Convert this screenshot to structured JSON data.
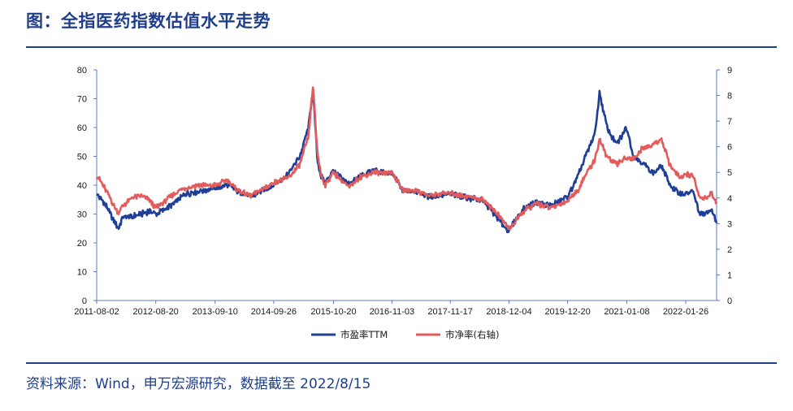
{
  "title": "图：全指医药指数估值水平走势",
  "source": "资料来源：Wind，申万宏源研究，数据截至 2022/8/15",
  "chart_data": {
    "type": "line",
    "title": "",
    "xlabel": "",
    "ylabel": "",
    "y2label": "",
    "ylim": [
      0,
      80
    ],
    "y2lim": [
      0,
      9
    ],
    "yticks": [
      0,
      10,
      20,
      30,
      40,
      50,
      60,
      70,
      80
    ],
    "y2ticks": [
      0,
      1,
      2,
      3,
      4,
      5,
      6,
      7,
      8,
      9
    ],
    "xlim": [
      "2011-08-02",
      "2022-08-15"
    ],
    "x_tick_labels": [
      "2011-08-02",
      "2012-08-20",
      "2013-09-10",
      "2014-09-26",
      "2015-10-20",
      "2016-11-03",
      "2017-11-17",
      "2018-12-04",
      "2019-12-20",
      "2021-01-08",
      "2022-01-26"
    ],
    "legend_position": "bottom",
    "grid": false,
    "series": [
      {
        "name": "市盈率TTM",
        "axis": "left",
        "color": "#1f3e96",
        "x": [
          "2011-08-02",
          "2011-10-01",
          "2011-12-20",
          "2012-01-20",
          "2012-03-15",
          "2012-05-15",
          "2012-07-10",
          "2012-08-20",
          "2012-12-01",
          "2013-03-01",
          "2013-06-01",
          "2013-09-10",
          "2013-12-01",
          "2014-02-01",
          "2014-05-01",
          "2014-09-26",
          "2015-01-01",
          "2015-03-15",
          "2015-05-10",
          "2015-06-08",
          "2015-07-08",
          "2015-08-01",
          "2015-08-25",
          "2015-10-20",
          "2015-12-25",
          "2016-02-01",
          "2016-04-01",
          "2016-07-01",
          "2016-11-03",
          "2017-01-15",
          "2017-04-01",
          "2017-07-01",
          "2017-11-17",
          "2018-01-25",
          "2018-05-15",
          "2018-07-01",
          "2018-10-15",
          "2018-12-04",
          "2019-01-03",
          "2019-03-15",
          "2019-06-01",
          "2019-09-01",
          "2019-12-20",
          "2020-02-25",
          "2020-04-15",
          "2020-06-15",
          "2020-07-15",
          "2020-09-01",
          "2020-11-01",
          "2021-01-08",
          "2021-02-20",
          "2021-04-15",
          "2021-06-30",
          "2021-08-20",
          "2021-10-15",
          "2021-12-15",
          "2022-01-26",
          "2022-03-15",
          "2022-04-26",
          "2022-06-15",
          "2022-07-10",
          "2022-08-15"
        ],
        "values": [
          37,
          33,
          25,
          29,
          29,
          30,
          31,
          30,
          33,
          37,
          38,
          39,
          40,
          38,
          36,
          40,
          44,
          50,
          60,
          73,
          48,
          43,
          41,
          45,
          42,
          40,
          43,
          45,
          44,
          38,
          38,
          36,
          37,
          36,
          35,
          34,
          27,
          24,
          27,
          32,
          34,
          33,
          36,
          43,
          50,
          58,
          72,
          60,
          54,
          60,
          50,
          48,
          44,
          47,
          40,
          37,
          37,
          38,
          30,
          30,
          32,
          27
        ]
      },
      {
        "name": "市净率(右轴)",
        "axis": "right",
        "color": "#e35b5b",
        "x": [
          "2011-08-02",
          "2011-10-01",
          "2011-12-20",
          "2012-01-20",
          "2012-03-15",
          "2012-05-15",
          "2012-07-10",
          "2012-08-20",
          "2012-12-01",
          "2013-03-01",
          "2013-06-01",
          "2013-09-10",
          "2013-12-01",
          "2014-02-01",
          "2014-05-01",
          "2014-09-26",
          "2015-01-01",
          "2015-03-15",
          "2015-05-10",
          "2015-06-08",
          "2015-07-08",
          "2015-08-01",
          "2015-08-25",
          "2015-10-20",
          "2015-12-25",
          "2016-02-01",
          "2016-04-01",
          "2016-07-01",
          "2016-11-03",
          "2017-01-15",
          "2017-04-01",
          "2017-07-01",
          "2017-11-17",
          "2018-01-25",
          "2018-05-15",
          "2018-07-01",
          "2018-10-15",
          "2018-12-04",
          "2019-01-03",
          "2019-03-15",
          "2019-06-01",
          "2019-09-01",
          "2019-12-20",
          "2020-02-25",
          "2020-04-15",
          "2020-06-15",
          "2020-07-15",
          "2020-09-01",
          "2020-11-01",
          "2021-01-08",
          "2021-02-20",
          "2021-04-15",
          "2021-06-30",
          "2021-08-20",
          "2021-10-15",
          "2021-12-15",
          "2022-01-26",
          "2022-03-15",
          "2022-04-26",
          "2022-06-15",
          "2022-07-10",
          "2022-08-15"
        ],
        "values": [
          4.9,
          4.3,
          3.4,
          3.7,
          4.0,
          4.1,
          3.9,
          3.6,
          4.1,
          4.4,
          4.5,
          4.5,
          4.7,
          4.3,
          4.1,
          4.6,
          4.8,
          5.3,
          6.4,
          8.4,
          5.7,
          4.9,
          4.5,
          5.0,
          4.6,
          4.4,
          4.8,
          5.0,
          5.0,
          4.3,
          4.3,
          4.1,
          4.2,
          4.1,
          4.0,
          3.9,
          3.2,
          2.8,
          3.0,
          3.5,
          3.8,
          3.6,
          3.9,
          4.3,
          4.9,
          5.5,
          6.3,
          5.6,
          5.3,
          5.6,
          5.5,
          5.9,
          6.1,
          6.3,
          5.3,
          4.8,
          4.9,
          4.9,
          4.0,
          4.0,
          4.2,
          3.8
        ]
      }
    ]
  }
}
